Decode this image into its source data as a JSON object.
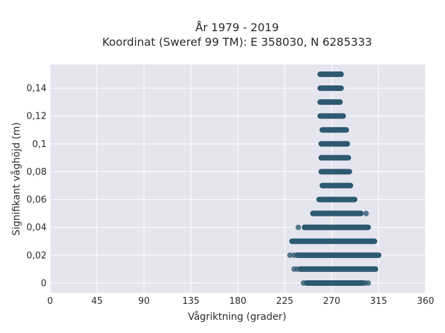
{
  "chart_data": {
    "type": "scatter",
    "title": "År 1979 - 2019",
    "subtitle": "Koordinat (Sweref 99 TM): E 358030, N 6285333",
    "xlabel": "Vågriktning (grader)",
    "ylabel": "Signifikant våghöjd (m)",
    "xlim": [
      0,
      360
    ],
    "ylim": [
      -0.007,
      0.157
    ],
    "x_ticks": [
      0,
      45,
      90,
      135,
      180,
      225,
      270,
      315,
      360
    ],
    "x_tick_labels": [
      "0",
      "45",
      "90",
      "135",
      "180",
      "225",
      "270",
      "315",
      "360"
    ],
    "y_ticks": [
      0,
      0.02,
      0.04,
      0.06,
      0.08,
      0.1,
      0.12,
      0.14
    ],
    "y_tick_labels": [
      "0",
      "0,02",
      "0,04",
      "0,06",
      "0,08",
      "0,1",
      "0,12",
      "0,14"
    ],
    "grid": true,
    "colors": {
      "plot_bg": "#e5e5f0",
      "grid": "#ffffff",
      "point": "#2e5a70"
    },
    "bands": [
      {
        "y": 0.15,
        "x_min": 259,
        "x_max": 279,
        "outliers": [
          279
        ]
      },
      {
        "y": 0.14,
        "x_min": 259,
        "x_max": 279,
        "outliers": []
      },
      {
        "y": 0.13,
        "x_min": 259,
        "x_max": 278,
        "outliers": []
      },
      {
        "y": 0.12,
        "x_min": 259,
        "x_max": 281,
        "outliers": []
      },
      {
        "y": 0.11,
        "x_min": 261,
        "x_max": 284,
        "outliers": []
      },
      {
        "y": 0.1,
        "x_min": 260,
        "x_max": 285,
        "outliers": []
      },
      {
        "y": 0.09,
        "x_min": 260,
        "x_max": 286,
        "outliers": []
      },
      {
        "y": 0.08,
        "x_min": 260,
        "x_max": 287,
        "outliers": []
      },
      {
        "y": 0.07,
        "x_min": 261,
        "x_max": 288,
        "outliers": []
      },
      {
        "y": 0.06,
        "x_min": 258,
        "x_max": 292,
        "outliers": []
      },
      {
        "y": 0.05,
        "x_min": 252,
        "x_max": 298,
        "outliers": [
          254,
          303
        ]
      },
      {
        "y": 0.04,
        "x_min": 244,
        "x_max": 305,
        "outliers": [
          238,
          244
        ]
      },
      {
        "y": 0.03,
        "x_min": 232,
        "x_max": 311,
        "outliers": []
      },
      {
        "y": 0.02,
        "x_min": 237,
        "x_max": 315,
        "outliers": [
          230,
          234
        ]
      },
      {
        "y": 0.01,
        "x_min": 240,
        "x_max": 312,
        "outliers": [
          234,
          237
        ]
      },
      {
        "y": 0.0,
        "x_min": 246,
        "x_max": 300,
        "outliers": [
          243,
          298,
          302,
          305
        ]
      }
    ]
  }
}
